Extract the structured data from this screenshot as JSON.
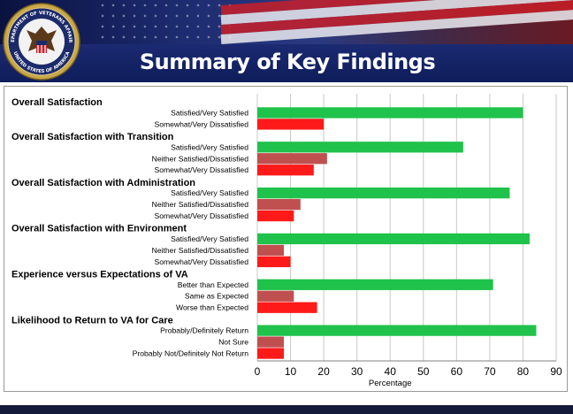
{
  "header": {
    "title": "Summary of Key Findings",
    "seal_text_top": "DEPARTMENT OF VETERANS AFFAIRS",
    "seal_text_bottom": "UNITED STATES OF AMERICA"
  },
  "colors": {
    "green": "#1fc24a",
    "red": "#ff1a1a",
    "muted_red": "#c05050"
  },
  "chart_data": {
    "type": "bar",
    "orientation": "horizontal",
    "xlabel": "Percentage",
    "xlim": [
      0,
      90
    ],
    "xticks": [
      0,
      10,
      20,
      30,
      40,
      50,
      60,
      70,
      80,
      90
    ],
    "grid": true,
    "groups": [
      {
        "heading": "Overall Satisfaction",
        "bars": [
          {
            "label": "Satisfied/Very Satisfied",
            "value": 80,
            "color": "green"
          },
          {
            "label": "Somewhat/Very Dissatisfied",
            "value": 20,
            "color": "red"
          }
        ]
      },
      {
        "heading": "Overall Satisfaction with Transition",
        "bars": [
          {
            "label": "Satisfied/Very Satisfied",
            "value": 62,
            "color": "green"
          },
          {
            "label": "Neither Satisfied/Dissatisfied",
            "value": 21,
            "color": "muted_red"
          },
          {
            "label": "Somewhat/Very Dissatisfied",
            "value": 17,
            "color": "red"
          }
        ]
      },
      {
        "heading": "Overall Satisfaction with Administration",
        "bars": [
          {
            "label": "Satisfied/Very Satisfied",
            "value": 76,
            "color": "green"
          },
          {
            "label": "Neither Satisfied/Dissatisfied",
            "value": 13,
            "color": "muted_red"
          },
          {
            "label": "Somewhat/Very Dissatisfied",
            "value": 11,
            "color": "red"
          }
        ]
      },
      {
        "heading": "Overall Satisfaction with Environment",
        "bars": [
          {
            "label": "Satisfied/Very Satisfied",
            "value": 82,
            "color": "green"
          },
          {
            "label": "Neither Satisfied/Dissatisfied",
            "value": 8,
            "color": "muted_red"
          },
          {
            "label": "Somewhat/Very Dissatisfied",
            "value": 10,
            "color": "red"
          }
        ]
      },
      {
        "heading": "Experience versus Expectations of VA",
        "bars": [
          {
            "label": "Better than Expected",
            "value": 71,
            "color": "green"
          },
          {
            "label": "Same as Expected",
            "value": 11,
            "color": "muted_red"
          },
          {
            "label": "Worse than Expected",
            "value": 18,
            "color": "red"
          }
        ]
      },
      {
        "heading": "Likelihood to Return to  VA for Care",
        "bars": [
          {
            "label": "Probably/Definitely Return",
            "value": 84,
            "color": "green"
          },
          {
            "label": "Not Sure",
            "value": 8,
            "color": "muted_red"
          },
          {
            "label": "Probably Not/Definitely Not Return",
            "value": 8,
            "color": "red"
          }
        ]
      }
    ]
  }
}
